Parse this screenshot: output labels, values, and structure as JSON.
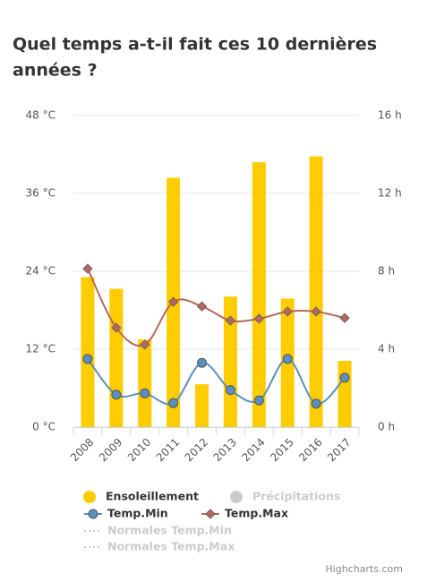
{
  "chart_data": {
    "type": "combo",
    "title": [
      "Quel temps a-t-il fait ces 10 dernières",
      "années ?"
    ],
    "categories": [
      "2008",
      "2009",
      "2010",
      "2011",
      "2012",
      "2013",
      "2014",
      "2015",
      "2016",
      "2017"
    ],
    "ylim": [
      0,
      48
    ],
    "yticks": [
      {
        "value": 0,
        "label": "0 °C"
      },
      {
        "value": 12,
        "label": "12 °C"
      },
      {
        "value": 24,
        "label": "24 °C"
      },
      {
        "value": 36,
        "label": "36 °C"
      },
      {
        "value": 48,
        "label": "48 °C"
      }
    ],
    "y2lim": [
      0,
      16
    ],
    "y2ticks": [
      {
        "value": 0,
        "label": "0 h"
      },
      {
        "value": 4,
        "label": "4 h"
      },
      {
        "value": 8,
        "label": "8 h"
      },
      {
        "value": 12,
        "label": "12 h"
      },
      {
        "value": 16,
        "label": "16 h"
      }
    ],
    "grid": true,
    "series": [
      {
        "name": "Ensoleillement",
        "type": "column",
        "axis": "y2",
        "color": "#ffcc00",
        "values": [
          7.7,
          7.1,
          4.5,
          12.8,
          2.2,
          6.7,
          13.6,
          6.6,
          13.9,
          3.4
        ]
      },
      {
        "name": "Précipitations",
        "type": "column",
        "visible": false,
        "color": "#cccccc"
      },
      {
        "name": "Temp.Min",
        "type": "spline",
        "marker": "circle",
        "color": "#5b8fbf",
        "values": [
          10.5,
          5.0,
          5.2,
          3.7,
          9.9,
          5.7,
          4.1,
          10.5,
          3.6,
          7.6
        ]
      },
      {
        "name": "Temp.Max",
        "type": "spline",
        "marker": "diamond",
        "color": "#b9675c",
        "values": [
          24.4,
          15.3,
          12.7,
          19.3,
          18.6,
          16.4,
          16.7,
          17.8,
          17.8,
          16.8
        ]
      },
      {
        "name": "Normales Temp.Min",
        "type": "spline",
        "dash": true,
        "visible": false,
        "color": "#cccccc"
      },
      {
        "name": "Normales Temp.Max",
        "type": "spline",
        "dash": true,
        "visible": false,
        "color": "#cccccc"
      }
    ],
    "credits": "Highcharts.com"
  }
}
